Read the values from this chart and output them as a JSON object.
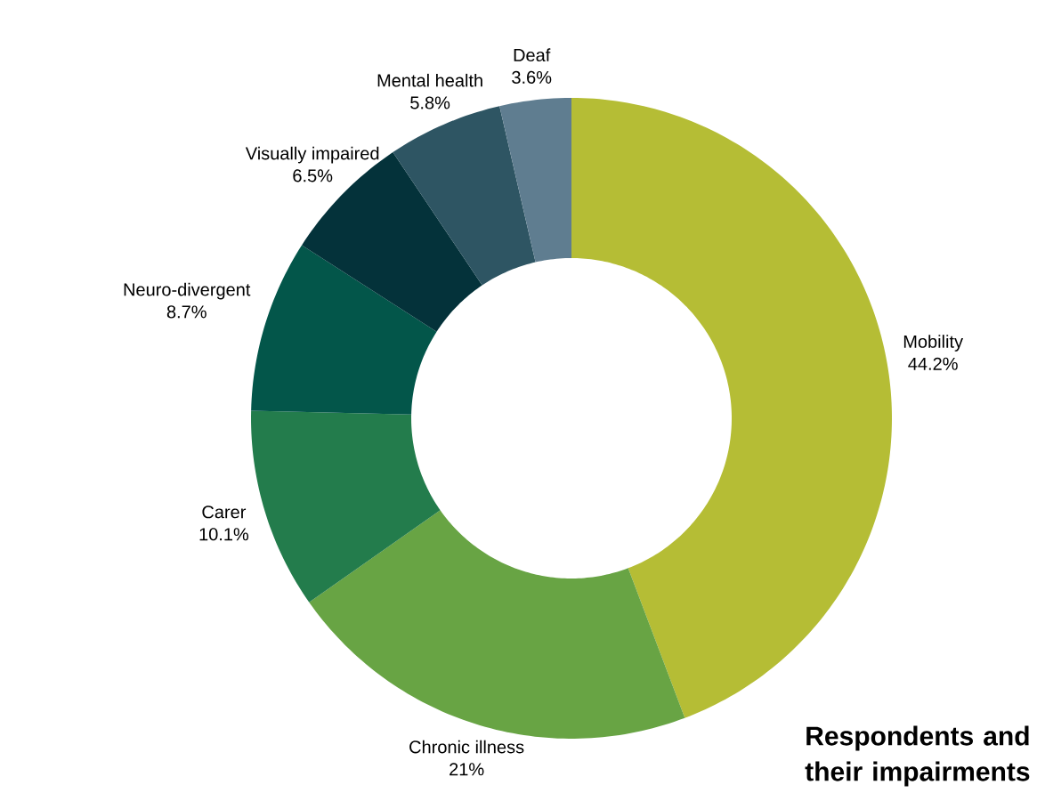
{
  "chart_data": {
    "type": "donut",
    "title": "Respondents and their impairments",
    "categories": [
      "Mobility",
      "Chronic illness",
      "Carer",
      "Neuro-divergent",
      "Visually impaired",
      "Mental health",
      "Deaf"
    ],
    "values": [
      44.2,
      21,
      10.1,
      8.7,
      6.5,
      5.8,
      3.6
    ],
    "value_labels": [
      "44.2%",
      "21%",
      "10.1%",
      "8.7%",
      "6.5%",
      "5.8%",
      "3.6%"
    ],
    "colors": [
      "#b5bd35",
      "#68a444",
      "#237c4c",
      "#03564a",
      "#04323a",
      "#2e5563",
      "#5f7d90"
    ]
  }
}
